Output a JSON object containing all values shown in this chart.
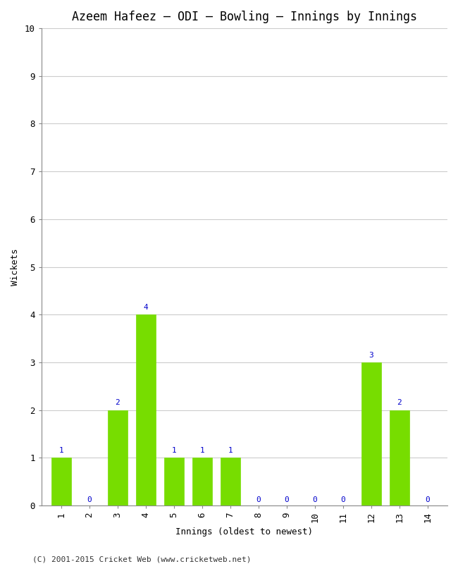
{
  "title": "Azeem Hafeez – ODI – Bowling – Innings by Innings",
  "xlabel": "Innings (oldest to newest)",
  "ylabel": "Wickets",
  "innings": [
    1,
    2,
    3,
    4,
    5,
    6,
    7,
    8,
    9,
    10,
    11,
    12,
    13,
    14
  ],
  "wickets": [
    1,
    0,
    2,
    4,
    1,
    1,
    1,
    0,
    0,
    0,
    0,
    3,
    2,
    0
  ],
  "bar_color": "#77dd00",
  "bar_edge_color": "#77dd00",
  "label_color": "#0000cc",
  "ylim": [
    0,
    10
  ],
  "yticks": [
    0,
    1,
    2,
    3,
    4,
    5,
    6,
    7,
    8,
    9,
    10
  ],
  "background_color": "#ffffff",
  "plot_bg_color": "#ffffff",
  "grid_color": "#cccccc",
  "title_fontsize": 12,
  "axis_fontsize": 9,
  "label_fontsize": 8,
  "footer": "(C) 2001-2015 Cricket Web (www.cricketweb.net)"
}
